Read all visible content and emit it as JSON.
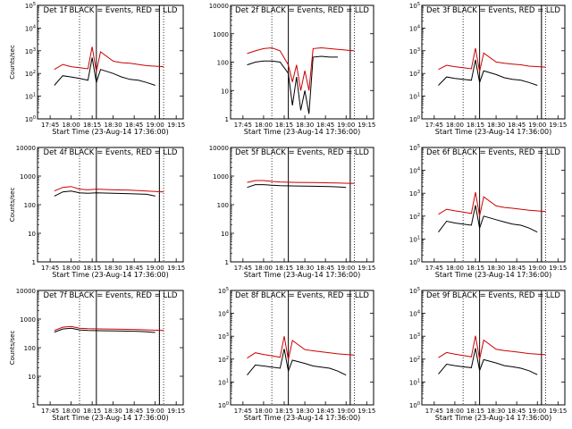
{
  "chart_data": {
    "type": "line",
    "xlabel": "Start Time (23-Aug-14 17:36:00)",
    "x_ticks": [
      "17:45",
      "18:00",
      "18:15",
      "18:30",
      "18:45",
      "19:00",
      "19:15"
    ],
    "colors": {
      "events": "#000000",
      "lld": "#cc0000"
    },
    "panels": [
      {
        "title": "Det 1f BLACK = Events, RED = LLD",
        "ylabel": "Counts/sec",
        "yscale": "log",
        "ylim": [
          1,
          100000
        ],
        "y_ticks": [
          {
            "m": "10",
            "e": "0"
          },
          {
            "m": "10",
            "e": "1"
          },
          {
            "m": "10",
            "e": "2"
          },
          {
            "m": "10",
            "e": "3"
          },
          {
            "m": "10",
            "e": "4"
          },
          {
            "m": "10",
            "e": "5"
          }
        ],
        "events": [
          [
            17.8,
            30
          ],
          [
            17.9,
            80
          ],
          [
            18.0,
            70
          ],
          [
            18.1,
            60
          ],
          [
            18.2,
            50
          ],
          [
            18.25,
            500
          ],
          [
            18.3,
            40
          ],
          [
            18.35,
            150
          ],
          [
            18.5,
            100
          ],
          [
            18.6,
            70
          ],
          [
            18.7,
            55
          ],
          [
            18.8,
            50
          ],
          [
            18.9,
            40
          ],
          [
            19.0,
            30
          ]
        ],
        "lld": [
          [
            17.8,
            150
          ],
          [
            17.9,
            250
          ],
          [
            18.0,
            200
          ],
          [
            18.1,
            180
          ],
          [
            18.2,
            160
          ],
          [
            18.25,
            1500
          ],
          [
            18.3,
            120
          ],
          [
            18.35,
            900
          ],
          [
            18.5,
            350
          ],
          [
            18.6,
            300
          ],
          [
            18.7,
            280
          ],
          [
            18.8,
            250
          ],
          [
            18.9,
            220
          ],
          [
            19.1,
            200
          ]
        ]
      },
      {
        "title": "Det 2f BLACK = Events, RED = LLD",
        "ylabel": "",
        "yscale": "log",
        "ylim": [
          1,
          10000
        ],
        "y_ticks": [
          {
            "m": "1",
            "e": ""
          },
          {
            "m": "10",
            "e": ""
          },
          {
            "m": "100",
            "e": ""
          },
          {
            "m": "1000",
            "e": ""
          },
          {
            "m": "10000",
            "e": ""
          }
        ],
        "events": [
          [
            17.8,
            80
          ],
          [
            17.9,
            100
          ],
          [
            18.0,
            110
          ],
          [
            18.1,
            110
          ],
          [
            18.2,
            100
          ],
          [
            18.3,
            40
          ],
          [
            18.35,
            3
          ],
          [
            18.4,
            30
          ],
          [
            18.45,
            2
          ],
          [
            18.5,
            10
          ],
          [
            18.55,
            1.5
          ],
          [
            18.6,
            150
          ],
          [
            18.7,
            160
          ],
          [
            18.8,
            150
          ],
          [
            18.9,
            150
          ]
        ],
        "lld": [
          [
            17.8,
            200
          ],
          [
            17.9,
            250
          ],
          [
            18.0,
            300
          ],
          [
            18.1,
            320
          ],
          [
            18.2,
            250
          ],
          [
            18.3,
            80
          ],
          [
            18.35,
            20
          ],
          [
            18.4,
            80
          ],
          [
            18.45,
            10
          ],
          [
            18.5,
            50
          ],
          [
            18.55,
            10
          ],
          [
            18.6,
            300
          ],
          [
            18.7,
            320
          ],
          [
            18.8,
            300
          ],
          [
            18.9,
            280
          ],
          [
            19.1,
            250
          ]
        ]
      },
      {
        "title": "Det 3f BLACK = Events, RED = LLD",
        "ylabel": "",
        "yscale": "log",
        "ylim": [
          1,
          100000
        ],
        "y_ticks": [
          {
            "m": "10",
            "e": "0"
          },
          {
            "m": "10",
            "e": "1"
          },
          {
            "m": "10",
            "e": "2"
          },
          {
            "m": "10",
            "e": "3"
          },
          {
            "m": "10",
            "e": "4"
          },
          {
            "m": "10",
            "e": "5"
          }
        ],
        "events": [
          [
            17.8,
            30
          ],
          [
            17.9,
            70
          ],
          [
            18.0,
            60
          ],
          [
            18.1,
            55
          ],
          [
            18.2,
            50
          ],
          [
            18.25,
            400
          ],
          [
            18.3,
            40
          ],
          [
            18.35,
            130
          ],
          [
            18.5,
            90
          ],
          [
            18.6,
            65
          ],
          [
            18.7,
            55
          ],
          [
            18.8,
            50
          ],
          [
            18.9,
            40
          ],
          [
            19.0,
            30
          ]
        ],
        "lld": [
          [
            17.8,
            150
          ],
          [
            17.9,
            230
          ],
          [
            18.0,
            200
          ],
          [
            18.1,
            180
          ],
          [
            18.2,
            160
          ],
          [
            18.25,
            1300
          ],
          [
            18.3,
            120
          ],
          [
            18.35,
            800
          ],
          [
            18.5,
            320
          ],
          [
            18.6,
            280
          ],
          [
            18.7,
            260
          ],
          [
            18.8,
            240
          ],
          [
            18.9,
            210
          ],
          [
            19.1,
            190
          ]
        ]
      },
      {
        "title": "Det 4f BLACK = Events, RED = LLD",
        "ylabel": "Counts/sec",
        "yscale": "log",
        "ylim": [
          1,
          10000
        ],
        "y_ticks": [
          {
            "m": "1",
            "e": ""
          },
          {
            "m": "10",
            "e": ""
          },
          {
            "m": "100",
            "e": ""
          },
          {
            "m": "1000",
            "e": ""
          },
          {
            "m": "10000",
            "e": ""
          }
        ],
        "events": [
          [
            17.8,
            200
          ],
          [
            17.9,
            280
          ],
          [
            18.0,
            300
          ],
          [
            18.1,
            260
          ],
          [
            18.2,
            250
          ],
          [
            18.3,
            260
          ],
          [
            18.5,
            250
          ],
          [
            18.7,
            240
          ],
          [
            18.9,
            230
          ],
          [
            19.0,
            200
          ]
        ],
        "lld": [
          [
            17.8,
            300
          ],
          [
            17.9,
            400
          ],
          [
            18.0,
            430
          ],
          [
            18.1,
            350
          ],
          [
            18.2,
            330
          ],
          [
            18.3,
            350
          ],
          [
            18.5,
            330
          ],
          [
            18.7,
            320
          ],
          [
            18.9,
            300
          ],
          [
            19.1,
            280
          ]
        ]
      },
      {
        "title": "Det 5f BLACK = Events, RED = LLD",
        "ylabel": "",
        "yscale": "log",
        "ylim": [
          1,
          10000
        ],
        "y_ticks": [
          {
            "m": "1",
            "e": ""
          },
          {
            "m": "10",
            "e": ""
          },
          {
            "m": "100",
            "e": ""
          },
          {
            "m": "1000",
            "e": ""
          },
          {
            "m": "10000",
            "e": ""
          }
        ],
        "events": [
          [
            17.8,
            400
          ],
          [
            17.9,
            500
          ],
          [
            18.0,
            500
          ],
          [
            18.1,
            480
          ],
          [
            18.2,
            460
          ],
          [
            18.4,
            450
          ],
          [
            18.6,
            440
          ],
          [
            18.8,
            430
          ],
          [
            18.9,
            420
          ],
          [
            19.0,
            400
          ]
        ],
        "lld": [
          [
            17.8,
            600
          ],
          [
            17.9,
            700
          ],
          [
            18.0,
            700
          ],
          [
            18.1,
            650
          ],
          [
            18.2,
            620
          ],
          [
            18.4,
            600
          ],
          [
            18.6,
            590
          ],
          [
            18.8,
            580
          ],
          [
            18.9,
            570
          ],
          [
            19.1,
            550
          ]
        ]
      },
      {
        "title": "Det 6f BLACK = Events, RED = LLD",
        "ylabel": "",
        "yscale": "log",
        "ylim": [
          1,
          100000
        ],
        "y_ticks": [
          {
            "m": "10",
            "e": "0"
          },
          {
            "m": "10",
            "e": "1"
          },
          {
            "m": "10",
            "e": "2"
          },
          {
            "m": "10",
            "e": "3"
          },
          {
            "m": "10",
            "e": "4"
          },
          {
            "m": "10",
            "e": "5"
          }
        ],
        "events": [
          [
            17.8,
            20
          ],
          [
            17.9,
            60
          ],
          [
            18.0,
            50
          ],
          [
            18.1,
            45
          ],
          [
            18.2,
            40
          ],
          [
            18.25,
            300
          ],
          [
            18.3,
            30
          ],
          [
            18.35,
            100
          ],
          [
            18.5,
            70
          ],
          [
            18.6,
            55
          ],
          [
            18.7,
            45
          ],
          [
            18.8,
            40
          ],
          [
            18.9,
            30
          ],
          [
            19.0,
            20
          ]
        ],
        "lld": [
          [
            17.8,
            120
          ],
          [
            17.9,
            200
          ],
          [
            18.0,
            170
          ],
          [
            18.1,
            150
          ],
          [
            18.2,
            130
          ],
          [
            18.25,
            1100
          ],
          [
            18.3,
            100
          ],
          [
            18.35,
            700
          ],
          [
            18.5,
            280
          ],
          [
            18.6,
            240
          ],
          [
            18.7,
            220
          ],
          [
            18.8,
            200
          ],
          [
            18.9,
            180
          ],
          [
            19.1,
            160
          ]
        ]
      },
      {
        "title": "Det 7f BLACK = Events, RED = LLD",
        "ylabel": "Counts/sec",
        "yscale": "log",
        "ylim": [
          1,
          10000
        ],
        "y_ticks": [
          {
            "m": "1",
            "e": ""
          },
          {
            "m": "10",
            "e": ""
          },
          {
            "m": "100",
            "e": ""
          },
          {
            "m": "1000",
            "e": ""
          },
          {
            "m": "10000",
            "e": ""
          }
        ],
        "events": [
          [
            17.8,
            350
          ],
          [
            17.9,
            450
          ],
          [
            18.0,
            480
          ],
          [
            18.1,
            420
          ],
          [
            18.2,
            400
          ],
          [
            18.4,
            390
          ],
          [
            18.6,
            380
          ],
          [
            18.8,
            370
          ],
          [
            18.9,
            360
          ],
          [
            19.0,
            340
          ]
        ],
        "lld": [
          [
            17.8,
            400
          ],
          [
            17.9,
            520
          ],
          [
            18.0,
            550
          ],
          [
            18.1,
            480
          ],
          [
            18.2,
            460
          ],
          [
            18.4,
            450
          ],
          [
            18.6,
            440
          ],
          [
            18.8,
            430
          ],
          [
            18.9,
            420
          ],
          [
            19.1,
            400
          ]
        ]
      },
      {
        "title": "Det 8f BLACK = Events, RED = LLD",
        "ylabel": "",
        "yscale": "log",
        "ylim": [
          1,
          100000
        ],
        "y_ticks": [
          {
            "m": "10",
            "e": "0"
          },
          {
            "m": "10",
            "e": "1"
          },
          {
            "m": "10",
            "e": "2"
          },
          {
            "m": "10",
            "e": "3"
          },
          {
            "m": "10",
            "e": "4"
          },
          {
            "m": "10",
            "e": "5"
          }
        ],
        "events": [
          [
            17.8,
            20
          ],
          [
            17.9,
            55
          ],
          [
            18.0,
            50
          ],
          [
            18.1,
            45
          ],
          [
            18.2,
            40
          ],
          [
            18.25,
            280
          ],
          [
            18.3,
            30
          ],
          [
            18.35,
            90
          ],
          [
            18.5,
            65
          ],
          [
            18.6,
            50
          ],
          [
            18.7,
            45
          ],
          [
            18.8,
            40
          ],
          [
            18.9,
            30
          ],
          [
            19.0,
            20
          ]
        ],
        "lld": [
          [
            17.8,
            110
          ],
          [
            17.9,
            190
          ],
          [
            18.0,
            160
          ],
          [
            18.1,
            140
          ],
          [
            18.2,
            120
          ],
          [
            18.25,
            1000
          ],
          [
            18.3,
            95
          ],
          [
            18.35,
            650
          ],
          [
            18.5,
            260
          ],
          [
            18.6,
            230
          ],
          [
            18.7,
            210
          ],
          [
            18.8,
            190
          ],
          [
            18.9,
            170
          ],
          [
            19.1,
            150
          ]
        ]
      },
      {
        "title": "Det 9f BLACK = Events, RED = LLD",
        "ylabel": "",
        "yscale": "log",
        "ylim": [
          1,
          100000
        ],
        "y_ticks": [
          {
            "m": "10",
            "e": "0"
          },
          {
            "m": "10",
            "e": "1"
          },
          {
            "m": "10",
            "e": "2"
          },
          {
            "m": "10",
            "e": "3"
          },
          {
            "m": "10",
            "e": "4"
          },
          {
            "m": "10",
            "e": "5"
          }
        ],
        "events": [
          [
            17.8,
            22
          ],
          [
            17.9,
            60
          ],
          [
            18.0,
            52
          ],
          [
            18.1,
            46
          ],
          [
            18.2,
            42
          ],
          [
            18.25,
            300
          ],
          [
            18.3,
            32
          ],
          [
            18.35,
            95
          ],
          [
            18.5,
            68
          ],
          [
            18.6,
            52
          ],
          [
            18.7,
            46
          ],
          [
            18.8,
            40
          ],
          [
            18.9,
            31
          ],
          [
            19.0,
            21
          ]
        ],
        "lld": [
          [
            17.8,
            115
          ],
          [
            17.9,
            195
          ],
          [
            18.0,
            165
          ],
          [
            18.1,
            145
          ],
          [
            18.2,
            125
          ],
          [
            18.25,
            1050
          ],
          [
            18.3,
            98
          ],
          [
            18.35,
            680
          ],
          [
            18.5,
            270
          ],
          [
            18.6,
            235
          ],
          [
            18.7,
            215
          ],
          [
            18.8,
            195
          ],
          [
            18.9,
            175
          ],
          [
            19.1,
            155
          ]
        ]
      }
    ]
  }
}
